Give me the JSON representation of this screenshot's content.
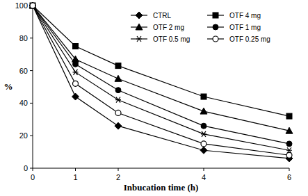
{
  "chart_data": {
    "type": "line",
    "x_label": "Inbucation time (h)",
    "y_label": "%",
    "x": [
      0,
      1,
      2,
      4,
      6
    ],
    "xlim": [
      0,
      6
    ],
    "xticks": [
      0,
      1,
      2,
      4,
      6
    ],
    "ylim": [
      0,
      100
    ],
    "yticks": [
      0,
      20,
      40,
      60,
      80,
      100
    ],
    "grid": false,
    "legend": "upper right",
    "series": [
      {
        "name": "CTRL",
        "color": "#000000",
        "marker": "diamond",
        "line_style": "solid",
        "values": [
          100,
          44,
          26,
          11,
          6
        ]
      },
      {
        "name": "OTF 4 mg",
        "color": "#000000",
        "marker": "square",
        "line_style": "solid",
        "values": [
          100,
          75,
          63,
          44,
          32
        ]
      },
      {
        "name": "OTF 2 mg",
        "color": "#000000",
        "marker": "triangle",
        "line_style": "solid",
        "values": [
          100,
          67,
          55,
          35,
          23
        ]
      },
      {
        "name": "OTF 1 mg",
        "color": "#000000",
        "marker": "circle",
        "line_style": "solid",
        "values": [
          100,
          64,
          48,
          26,
          15
        ]
      },
      {
        "name": "OTF 0.5 mg",
        "color": "#000000",
        "marker": "star",
        "line_style": "solid",
        "values": [
          100,
          59,
          42,
          21,
          11
        ]
      },
      {
        "name": "OTF 0.25 mg",
        "color": "#000000",
        "marker": "open-circle",
        "line_style": "solid",
        "values": [
          100,
          52,
          34,
          15,
          8
        ]
      }
    ]
  }
}
